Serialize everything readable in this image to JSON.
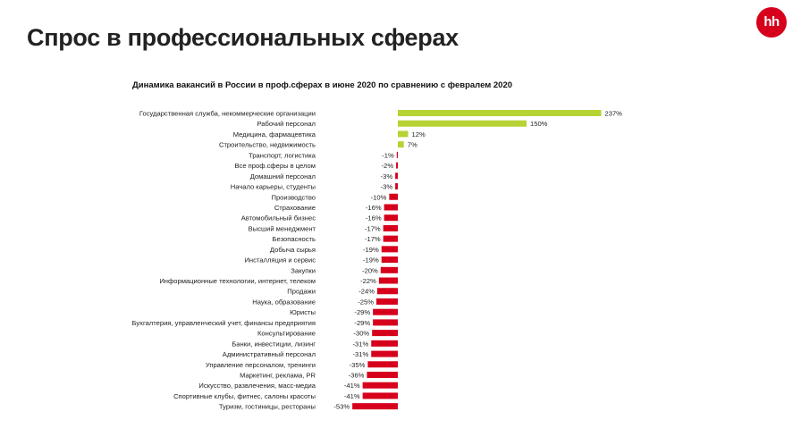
{
  "page": {
    "title": "Спрос в профессиональных сферах",
    "logo_text": "hh"
  },
  "colors": {
    "positive": "#b5d334",
    "negative": "#d6001c",
    "logo": "#d6001c"
  },
  "chart_data": {
    "type": "bar",
    "orientation": "horizontal",
    "title": "Динамика вакансий в России в проф.сферах в июне 2020 по сравнению с февралем 2020",
    "xlabel": "",
    "ylabel": "",
    "unit": "%",
    "grid": false,
    "categories": [
      "Государственная служба, некоммерческие организации",
      "Рабочий персонал",
      "Медицина, фармацевтика",
      "Строительство, недвижимость",
      "Транспорт, логистика",
      "Все проф.сферы в целом",
      "Домашний персонал",
      "Начало карьеры, студенты",
      "Производство",
      "Страхование",
      "Автомобильный бизнес",
      "Высший менеджмент",
      "Безопасность",
      "Добыча сырья",
      "Инсталляция и сервис",
      "Закупки",
      "Информационные технологии, интернет, телеком",
      "Продажи",
      "Наука, образование",
      "Юристы",
      "Бухгалтерия, управленческий учет, финансы предприятия",
      "Консультирование",
      "Банки, инвестиции, лизинг",
      "Административный персонал",
      "Управление персоналом, тренинги",
      "Маркетинг, реклама, PR",
      "Искусство, развлечения, масс-медиа",
      "Спортивные клубы, фитнес, салоны красоты",
      "Туризм, гостиницы, рестораны"
    ],
    "values": [
      237,
      150,
      12,
      7,
      -1,
      -2,
      -3,
      -3,
      -10,
      -16,
      -16,
      -17,
      -17,
      -19,
      -19,
      -20,
      -22,
      -24,
      -25,
      -29,
      -29,
      -30,
      -31,
      -31,
      -35,
      -36,
      -41,
      -41,
      -53
    ],
    "value_labels": [
      "237%",
      "150%",
      "12%",
      "7%",
      "-1%",
      "-2%",
      "-3%",
      "-3%",
      "-10%",
      "-16%",
      "-16%",
      "-17%",
      "-17%",
      "-19%",
      "-19%",
      "-20%",
      "-22%",
      "-24%",
      "-25%",
      "-29%",
      "-29%",
      "-30%",
      "-31%",
      "-31%",
      "-35%",
      "-36%",
      "-41%",
      "-41%",
      "-53%"
    ]
  }
}
